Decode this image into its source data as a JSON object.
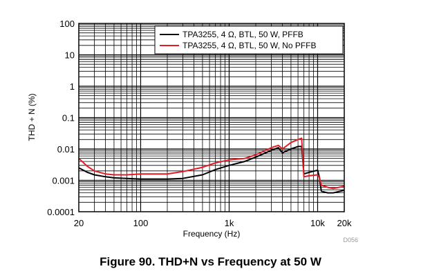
{
  "caption": "Figure 90. THD+N vs Frequency at 50 W",
  "figure_code": "D056",
  "chart_data": {
    "type": "line",
    "title": "Figure 90. THD+N vs Frequency at 50 W",
    "xlabel": "Frequency (Hz)",
    "ylabel": "THD + N (%)",
    "x_scale": "log",
    "y_scale": "log",
    "xlim": [
      20,
      20000
    ],
    "ylim": [
      0.0001,
      100
    ],
    "grid": true,
    "legend_position": "top-right",
    "x_ticks": [
      {
        "value": 20,
        "label": "20"
      },
      {
        "value": 100,
        "label": "100"
      },
      {
        "value": 1000,
        "label": "1k"
      },
      {
        "value": 10000,
        "label": "10k"
      },
      {
        "value": 20000,
        "label": "20k"
      }
    ],
    "y_ticks": [
      {
        "value": 0.0001,
        "label": "0.0001"
      },
      {
        "value": 0.001,
        "label": "0.001"
      },
      {
        "value": 0.01,
        "label": "0.01"
      },
      {
        "value": 0.1,
        "label": "0.1"
      },
      {
        "value": 1,
        "label": "1"
      },
      {
        "value": 10,
        "label": "10"
      },
      {
        "value": 100,
        "label": "100"
      }
    ],
    "series": [
      {
        "name": "TPA3255, 4 Ω, BTL, 50 W, PFFB",
        "color": "#000000",
        "x": [
          20,
          25,
          30,
          40,
          50,
          70,
          100,
          150,
          200,
          300,
          500,
          700,
          1000,
          1500,
          2000,
          3000,
          3600,
          4000,
          5000,
          6000,
          6600,
          7000,
          8000,
          10000,
          10500,
          11000,
          13000,
          15000,
          20000
        ],
        "y": [
          0.0025,
          0.0018,
          0.0015,
          0.0013,
          0.0012,
          0.00115,
          0.0011,
          0.0011,
          0.0011,
          0.00115,
          0.0015,
          0.0022,
          0.003,
          0.004,
          0.0055,
          0.009,
          0.011,
          0.0075,
          0.01,
          0.012,
          0.012,
          0.0016,
          0.0018,
          0.0021,
          0.0012,
          0.00045,
          0.0004,
          0.0004,
          0.00048
        ]
      },
      {
        "name": "TPA3255, 4 Ω, BTL, 50 W, No PFFB",
        "color": "#e31b23",
        "x": [
          20,
          25,
          30,
          40,
          50,
          70,
          100,
          150,
          200,
          300,
          500,
          700,
          1000,
          1500,
          2000,
          3000,
          3600,
          4000,
          5000,
          6000,
          6600,
          7000,
          8000,
          10000,
          10500,
          11000,
          13000,
          15000,
          20000
        ],
        "y": [
          0.005,
          0.0028,
          0.002,
          0.0016,
          0.0015,
          0.0015,
          0.0016,
          0.0016,
          0.0016,
          0.0019,
          0.0026,
          0.0036,
          0.0045,
          0.005,
          0.0065,
          0.011,
          0.013,
          0.01,
          0.016,
          0.02,
          0.022,
          0.0013,
          0.0014,
          0.0015,
          0.0012,
          0.0007,
          0.0006,
          0.00055,
          0.00065
        ]
      }
    ]
  }
}
